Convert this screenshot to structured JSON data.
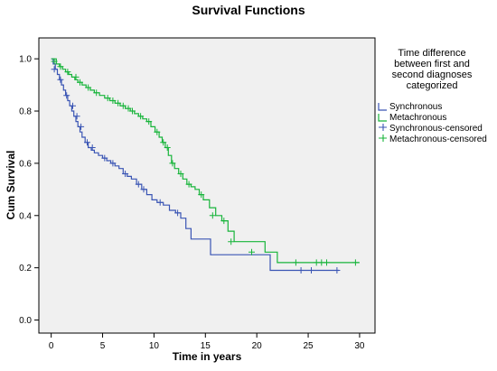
{
  "chart_data": {
    "type": "line",
    "title": "Survival Functions",
    "xlabel": "Time in years",
    "ylabel": "Cum Survival",
    "xlim": [
      -1.2,
      31.5
    ],
    "ylim": [
      -0.05,
      1.08
    ],
    "x_ticks": [
      0,
      5,
      10,
      15,
      20,
      25,
      30
    ],
    "x_tick_labels": [
      "0",
      "5",
      "10",
      "15",
      "20",
      "25",
      "30"
    ],
    "y_ticks": [
      0.0,
      0.2,
      0.4,
      0.6,
      0.8,
      1.0
    ],
    "y_tick_labels": [
      "0.0",
      "0.2",
      "0.4",
      "0.6",
      "0.8",
      "1.0"
    ],
    "step": true,
    "grid": false,
    "legend": {
      "placement": "right",
      "title_lines": [
        "Time difference",
        "between first and",
        "second diagnoses",
        "categorized"
      ],
      "entries": [
        {
          "label": "Synchronous",
          "kind": "line",
          "color": "#3a55b4"
        },
        {
          "label": "Metachronous",
          "kind": "line",
          "color": "#17b43a"
        },
        {
          "label": "Synchronous-censored",
          "kind": "marker",
          "color": "#3a55b4"
        },
        {
          "label": "Metachronous-censored",
          "kind": "marker",
          "color": "#17b43a"
        }
      ]
    },
    "series": [
      {
        "name": "Synchronous",
        "color": "#3a55b4",
        "x": [
          0,
          0.2,
          0.4,
          0.6,
          0.8,
          1.0,
          1.2,
          1.4,
          1.6,
          1.8,
          2.0,
          2.2,
          2.4,
          2.6,
          2.8,
          3.0,
          3.3,
          3.6,
          3.9,
          4.2,
          4.6,
          5.0,
          5.4,
          5.8,
          6.2,
          6.6,
          7.0,
          7.4,
          7.8,
          8.3,
          8.8,
          9.3,
          9.8,
          10.3,
          10.9,
          11.5,
          12.1,
          12.6,
          13.1,
          13.6,
          15.5,
          21.3,
          28.0
        ],
        "y": [
          1.0,
          0.98,
          0.96,
          0.94,
          0.92,
          0.9,
          0.88,
          0.86,
          0.84,
          0.82,
          0.8,
          0.78,
          0.76,
          0.74,
          0.72,
          0.7,
          0.68,
          0.66,
          0.65,
          0.64,
          0.63,
          0.62,
          0.61,
          0.6,
          0.59,
          0.58,
          0.56,
          0.55,
          0.54,
          0.52,
          0.5,
          0.48,
          0.46,
          0.45,
          0.44,
          0.42,
          0.41,
          0.39,
          0.35,
          0.31,
          0.25,
          0.19,
          0.19
        ]
      },
      {
        "name": "Metachronous",
        "color": "#17b43a",
        "x": [
          0,
          0.5,
          0.8,
          1.1,
          1.4,
          1.7,
          2.0,
          2.3,
          2.6,
          3.0,
          3.4,
          3.8,
          4.2,
          4.7,
          5.2,
          5.7,
          6.2,
          6.7,
          7.2,
          7.7,
          8.1,
          8.5,
          8.9,
          9.3,
          9.7,
          10.1,
          10.5,
          10.8,
          11.1,
          11.4,
          11.7,
          12.0,
          12.4,
          12.8,
          13.2,
          13.6,
          14.0,
          14.4,
          14.8,
          15.4,
          16.0,
          16.6,
          17.2,
          17.8,
          20.8,
          22.0,
          30.0
        ],
        "y": [
          1.0,
          0.98,
          0.97,
          0.96,
          0.95,
          0.94,
          0.93,
          0.92,
          0.91,
          0.9,
          0.89,
          0.88,
          0.87,
          0.86,
          0.85,
          0.84,
          0.83,
          0.82,
          0.81,
          0.8,
          0.79,
          0.78,
          0.77,
          0.76,
          0.74,
          0.72,
          0.7,
          0.68,
          0.66,
          0.63,
          0.6,
          0.58,
          0.56,
          0.54,
          0.52,
          0.51,
          0.5,
          0.48,
          0.46,
          0.43,
          0.4,
          0.38,
          0.34,
          0.3,
          0.26,
          0.22,
          0.22
        ]
      }
    ],
    "censored": [
      {
        "name": "Synchronous-censored",
        "color": "#3a55b4",
        "x": [
          0.3,
          0.9,
          1.5,
          2.1,
          2.5,
          2.9,
          3.5,
          4.0,
          5.2,
          6.0,
          7.2,
          8.5,
          9.0,
          10.6,
          12.3,
          24.3,
          25.3,
          27.8
        ],
        "y": [
          0.96,
          0.92,
          0.86,
          0.82,
          0.78,
          0.74,
          0.68,
          0.66,
          0.62,
          0.6,
          0.56,
          0.52,
          0.5,
          0.45,
          0.41,
          0.19,
          0.19,
          0.19
        ]
      },
      {
        "name": "Metachronous-censored",
        "color": "#17b43a",
        "x": [
          0.3,
          0.9,
          1.6,
          2.4,
          2.8,
          3.6,
          4.4,
          5.5,
          6.0,
          6.5,
          7.0,
          7.5,
          7.9,
          8.7,
          9.5,
          10.3,
          10.9,
          11.3,
          11.8,
          12.6,
          13.4,
          14.6,
          15.7,
          16.8,
          17.5,
          19.5,
          23.8,
          25.8,
          26.3,
          26.8,
          29.6
        ],
        "y": [
          0.99,
          0.97,
          0.95,
          0.93,
          0.91,
          0.89,
          0.87,
          0.85,
          0.84,
          0.83,
          0.82,
          0.81,
          0.8,
          0.78,
          0.76,
          0.72,
          0.68,
          0.66,
          0.6,
          0.56,
          0.52,
          0.48,
          0.4,
          0.38,
          0.3,
          0.26,
          0.22,
          0.22,
          0.22,
          0.22,
          0.22
        ]
      }
    ]
  }
}
